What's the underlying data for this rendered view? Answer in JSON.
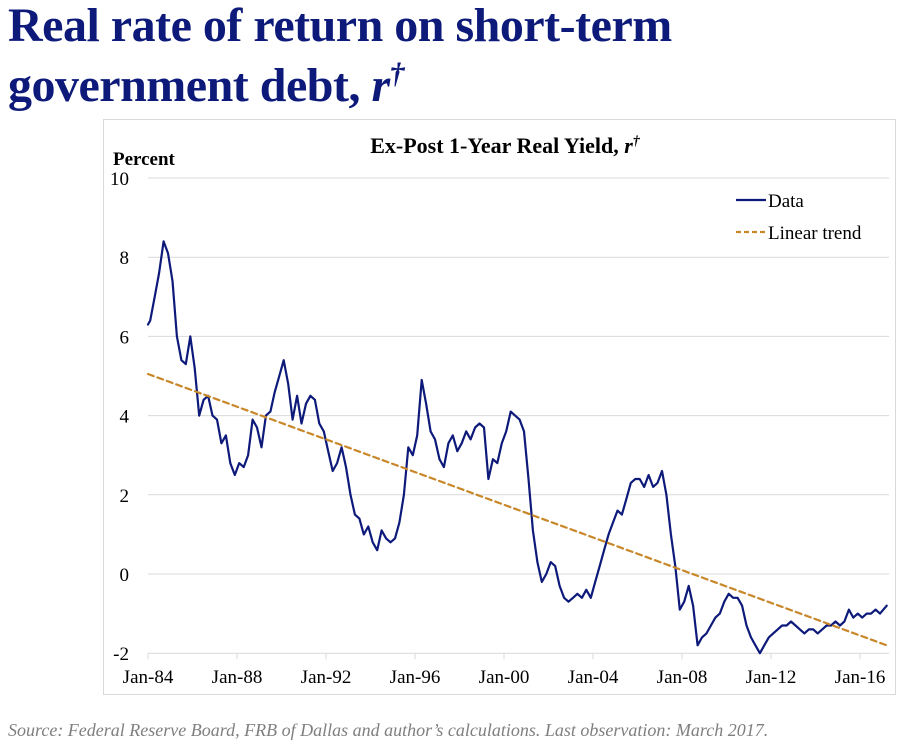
{
  "slide": {
    "title_line1": "Real rate of return on short-term",
    "title_line2_text": "government debt, ",
    "title_symbol": "r",
    "title_superscript": "†",
    "source_note": "Source: Federal Reserve Board, FRB of Dallas and author’s calculations. Last observation: March 2017."
  },
  "colors": {
    "title": "#0d1a7a",
    "data_line": "#0d1a7a",
    "trend_line": "#c8882a",
    "gridline": "#d9d9d9",
    "footer": "#7f7f7f"
  },
  "chart_data": {
    "type": "line",
    "title": "Ex-Post 1-Year Real Yield, ",
    "title_symbol": "r",
    "title_superscript": "†",
    "ylabel": "Percent",
    "xlabel": "",
    "ylim": [
      -2,
      10
    ],
    "yticks": [
      -2,
      0,
      2,
      4,
      6,
      8,
      10
    ],
    "xlim": [
      1984,
      2017.4
    ],
    "xticks": [
      {
        "x": 1984,
        "label": "Jan-84"
      },
      {
        "x": 1988,
        "label": "Jan-88"
      },
      {
        "x": 1992,
        "label": "Jan-92"
      },
      {
        "x": 1996,
        "label": "Jan-96"
      },
      {
        "x": 2000,
        "label": "Jan-00"
      },
      {
        "x": 2004,
        "label": "Jan-04"
      },
      {
        "x": 2008,
        "label": "Jan-08"
      },
      {
        "x": 2012,
        "label": "Jan-12"
      },
      {
        "x": 2016,
        "label": "Jan-16"
      }
    ],
    "grid": "horizontal",
    "legend_position": "top-right",
    "series": [
      {
        "name": "Data",
        "style": "solid",
        "x": [
          1984.0,
          1984.1,
          1984.3,
          1984.5,
          1984.7,
          1984.9,
          1985.1,
          1985.3,
          1985.5,
          1985.7,
          1985.9,
          1986.1,
          1986.3,
          1986.5,
          1986.7,
          1986.9,
          1987.1,
          1987.3,
          1987.5,
          1987.7,
          1987.9,
          1988.1,
          1988.3,
          1988.5,
          1988.7,
          1988.9,
          1989.1,
          1989.3,
          1989.5,
          1989.7,
          1989.9,
          1990.1,
          1990.3,
          1990.5,
          1990.7,
          1990.9,
          1991.1,
          1991.3,
          1991.5,
          1991.7,
          1991.9,
          1992.1,
          1992.3,
          1992.5,
          1992.7,
          1992.9,
          1993.1,
          1993.3,
          1993.5,
          1993.7,
          1993.9,
          1994.1,
          1994.3,
          1994.5,
          1994.7,
          1994.9,
          1995.1,
          1995.3,
          1995.5,
          1995.7,
          1995.9,
          1996.1,
          1996.3,
          1996.5,
          1996.7,
          1996.9,
          1997.1,
          1997.3,
          1997.5,
          1997.7,
          1997.9,
          1998.1,
          1998.3,
          1998.5,
          1998.7,
          1998.9,
          1999.1,
          1999.3,
          1999.5,
          1999.7,
          1999.9,
          2000.1,
          2000.3,
          2000.5,
          2000.7,
          2000.9,
          2001.1,
          2001.3,
          2001.5,
          2001.7,
          2001.9,
          2002.1,
          2002.3,
          2002.5,
          2002.7,
          2002.9,
          2003.1,
          2003.3,
          2003.5,
          2003.7,
          2003.9,
          2004.1,
          2004.3,
          2004.5,
          2004.7,
          2004.9,
          2005.1,
          2005.3,
          2005.5,
          2005.7,
          2005.9,
          2006.1,
          2006.3,
          2006.5,
          2006.7,
          2006.9,
          2007.1,
          2007.3,
          2007.5,
          2007.7,
          2007.9,
          2008.1,
          2008.3,
          2008.5,
          2008.7,
          2008.9,
          2009.1,
          2009.3,
          2009.5,
          2009.7,
          2009.9,
          2010.1,
          2010.3,
          2010.5,
          2010.7,
          2010.9,
          2011.1,
          2011.3,
          2011.5,
          2011.7,
          2011.9,
          2012.1,
          2012.3,
          2012.5,
          2012.7,
          2012.9,
          2013.1,
          2013.3,
          2013.5,
          2013.7,
          2013.9,
          2014.1,
          2014.3,
          2014.5,
          2014.7,
          2014.9,
          2015.1,
          2015.3,
          2015.5,
          2015.7,
          2015.9,
          2016.1,
          2016.3,
          2016.5,
          2016.7,
          2016.9,
          2017.2
        ],
        "values": [
          6.3,
          6.4,
          7.0,
          7.6,
          8.4,
          8.1,
          7.4,
          6.0,
          5.4,
          5.3,
          6.0,
          5.2,
          4.0,
          4.4,
          4.5,
          4.0,
          3.9,
          3.3,
          3.5,
          2.8,
          2.5,
          2.8,
          2.7,
          3.0,
          3.9,
          3.7,
          3.2,
          4.0,
          4.1,
          4.6,
          5.0,
          5.4,
          4.8,
          3.9,
          4.5,
          3.8,
          4.3,
          4.5,
          4.4,
          3.8,
          3.6,
          3.1,
          2.6,
          2.8,
          3.2,
          2.7,
          2.0,
          1.5,
          1.4,
          1.0,
          1.2,
          0.8,
          0.6,
          1.1,
          0.9,
          0.8,
          0.9,
          1.3,
          2.0,
          3.2,
          3.0,
          3.5,
          4.9,
          4.3,
          3.6,
          3.4,
          2.9,
          2.7,
          3.3,
          3.5,
          3.1,
          3.3,
          3.6,
          3.4,
          3.7,
          3.8,
          3.7,
          2.4,
          2.9,
          2.8,
          3.3,
          3.6,
          4.1,
          4.0,
          3.9,
          3.6,
          2.4,
          1.1,
          0.3,
          -0.2,
          0.0,
          0.3,
          0.2,
          -0.3,
          -0.6,
          -0.7,
          -0.6,
          -0.5,
          -0.6,
          -0.4,
          -0.6,
          -0.2,
          0.2,
          0.6,
          1.0,
          1.3,
          1.6,
          1.5,
          1.9,
          2.3,
          2.4,
          2.4,
          2.2,
          2.5,
          2.2,
          2.3,
          2.6,
          2.0,
          1.0,
          0.2,
          -0.9,
          -0.7,
          -0.3,
          -0.8,
          -1.8,
          -1.6,
          -1.5,
          -1.3,
          -1.1,
          -1.0,
          -0.7,
          -0.5,
          -0.6,
          -0.6,
          -0.8,
          -1.3,
          -1.6,
          -1.8,
          -2.0,
          -1.8,
          -1.6,
          -1.5,
          -1.4,
          -1.3,
          -1.3,
          -1.2,
          -1.3,
          -1.4,
          -1.5,
          -1.4,
          -1.4,
          -1.5,
          -1.4,
          -1.3,
          -1.3,
          -1.2,
          -1.3,
          -1.2,
          -0.9,
          -1.1,
          -1.0,
          -1.1,
          -1.0,
          -1.0,
          -0.9,
          -1.0,
          -0.8
        ]
      },
      {
        "name": "Linear trend",
        "style": "dashed",
        "x": [
          1984.0,
          2017.2
        ],
        "values": [
          5.05,
          -1.8
        ]
      }
    ]
  }
}
